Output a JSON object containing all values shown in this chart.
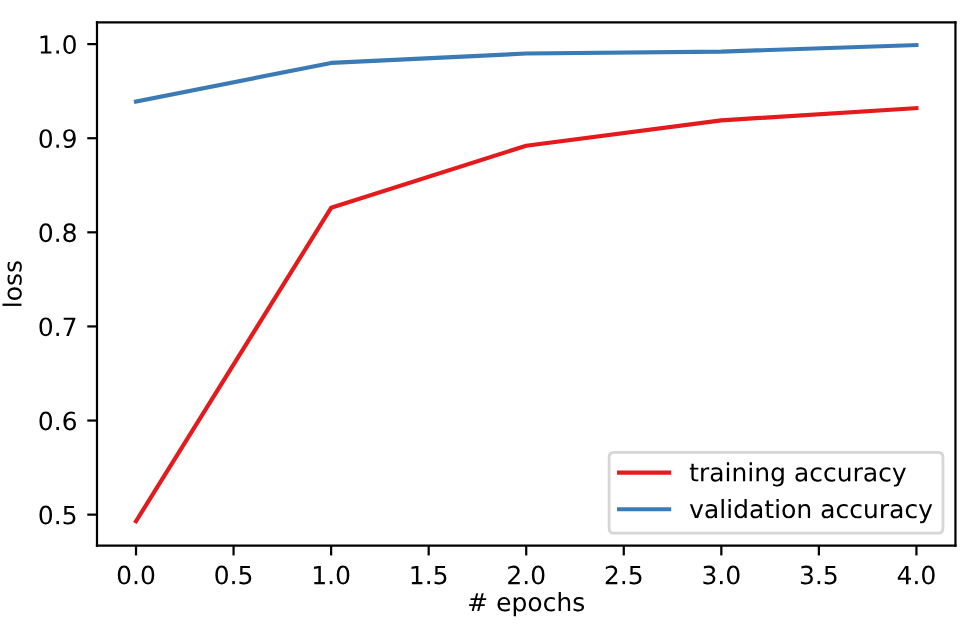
{
  "chart_data": {
    "type": "line",
    "xlabel": "# epochs",
    "ylabel": "loss",
    "x": [
      0,
      1,
      2,
      3,
      4
    ],
    "series": [
      {
        "name": "training accuracy",
        "color": "#e41a1c",
        "values": [
          0.493,
          0.826,
          0.892,
          0.919,
          0.932
        ]
      },
      {
        "name": "validation accuracy",
        "color": "#3b7bb5",
        "values": [
          0.939,
          0.98,
          0.99,
          0.992,
          0.999
        ]
      }
    ],
    "xlim": [
      -0.2,
      4.2
    ],
    "xticks": [
      {
        "value": 0,
        "label": "0.0"
      },
      0.5,
      {
        "value": 1,
        "label": "1.0"
      },
      1.5,
      {
        "value": 2,
        "label": "2.0"
      },
      2.5,
      {
        "value": 3,
        "label": "3.0"
      },
      3.5,
      {
        "value": 4,
        "label": "4.0"
      }
    ],
    "ylim": [
      0.467,
      1.023
    ],
    "yticks": [
      0.5,
      0.6,
      0.7,
      0.8,
      0.9,
      {
        "value": 1,
        "label": "1.0"
      }
    ],
    "legend": "bottom right",
    "grid": false,
    "marker": "none",
    "line_style": "solid"
  }
}
